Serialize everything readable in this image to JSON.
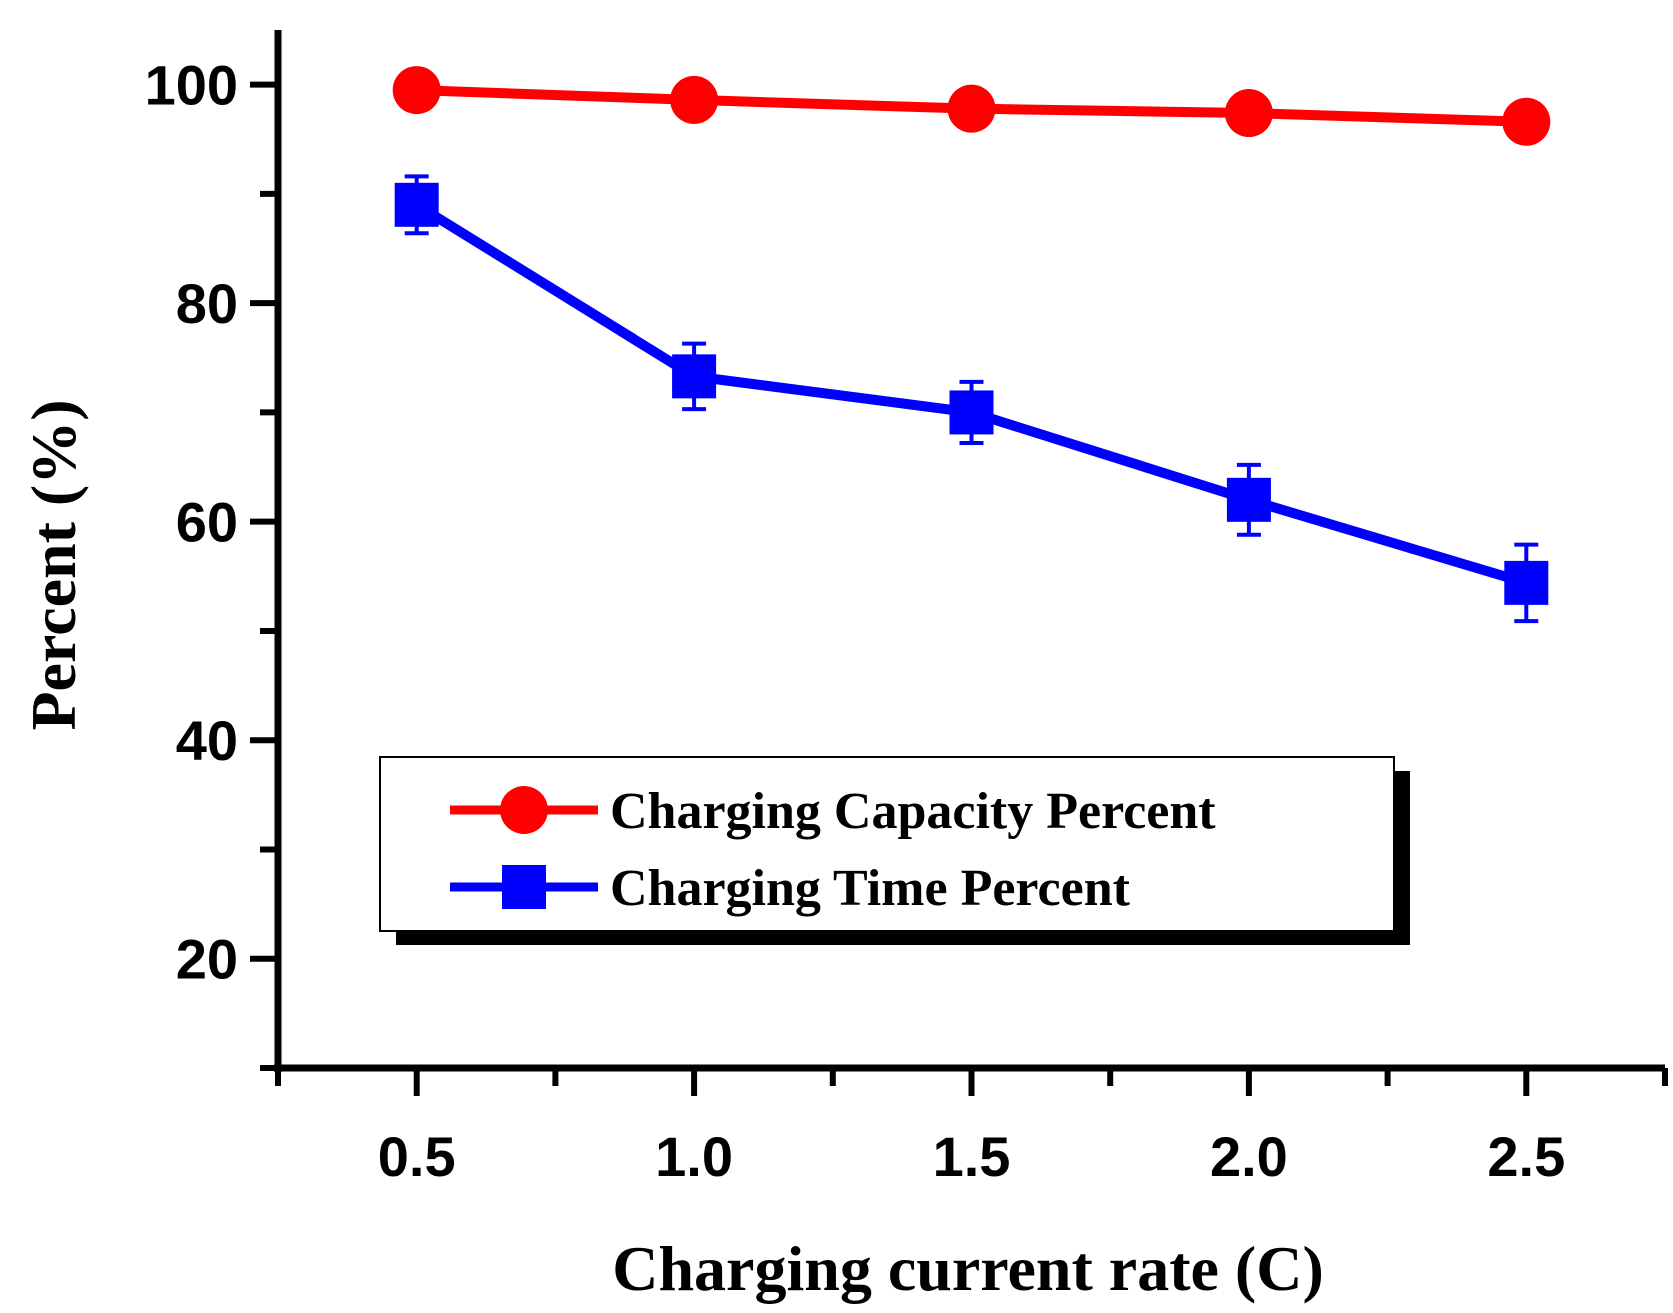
{
  "chart_data": {
    "type": "line",
    "title": "",
    "xlabel": "Charging current rate (C)",
    "ylabel": "Percent (%)",
    "x": [
      0.5,
      1.0,
      1.5,
      2.0,
      2.5
    ],
    "xlim": [
      0.25,
      2.75
    ],
    "ylim": [
      10,
      105
    ],
    "x_ticks": [
      "0.5",
      "1.0",
      "1.5",
      "2.0",
      "2.5"
    ],
    "y_ticks": [
      "20",
      "40",
      "60",
      "80",
      "100"
    ],
    "grid": false,
    "legend_position": "center",
    "series": [
      {
        "name": "Charging Capacity Percent",
        "color": "#ff0000",
        "marker": "circle",
        "values": [
          99.5,
          98.6,
          97.8,
          97.4,
          96.6
        ]
      },
      {
        "name": "Charging Time Percent",
        "color": "#0000ff",
        "marker": "square",
        "values": [
          89.0,
          73.3,
          70.0,
          62.0,
          54.4
        ],
        "error": [
          2.6,
          3.0,
          2.8,
          3.2,
          3.5
        ]
      }
    ]
  }
}
